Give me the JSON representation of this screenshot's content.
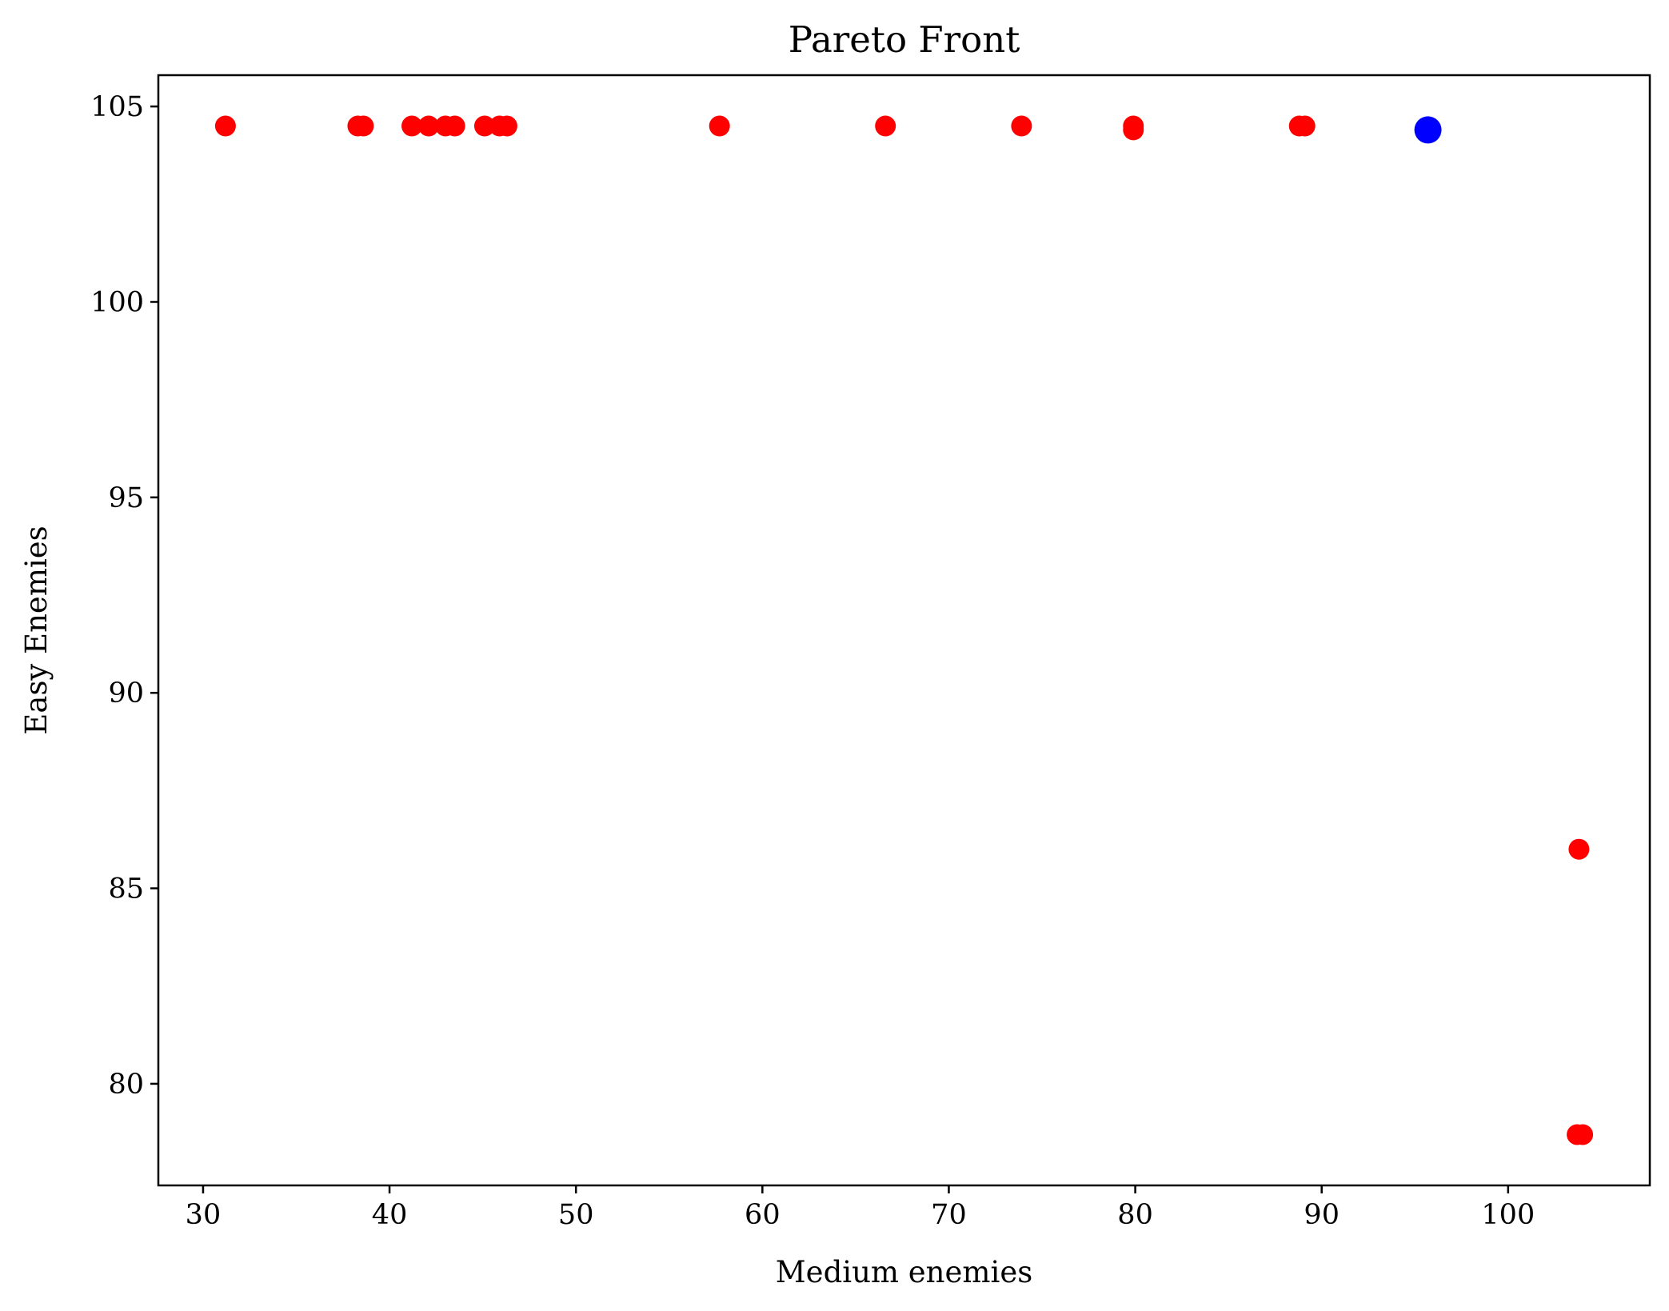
{
  "chart_data": {
    "type": "scatter",
    "title": "Pareto Front",
    "xlabel": "Medium enemies",
    "ylabel": "Easy Enemies",
    "xlim": [
      27.6,
      107.6
    ],
    "ylim": [
      77.4,
      105.8
    ],
    "xticks": [
      30,
      40,
      50,
      60,
      70,
      80,
      90,
      100
    ],
    "yticks": [
      80,
      85,
      90,
      95,
      100,
      105
    ],
    "grid": false,
    "series": [
      {
        "color": "#ff0000",
        "points": [
          {
            "x": 31.2,
            "y": 104.5
          },
          {
            "x": 38.3,
            "y": 104.5
          },
          {
            "x": 38.6,
            "y": 104.5
          },
          {
            "x": 41.2,
            "y": 104.5
          },
          {
            "x": 42.1,
            "y": 104.5
          },
          {
            "x": 43.0,
            "y": 104.5
          },
          {
            "x": 43.5,
            "y": 104.5
          },
          {
            "x": 45.1,
            "y": 104.5
          },
          {
            "x": 45.9,
            "y": 104.5
          },
          {
            "x": 46.3,
            "y": 104.5
          },
          {
            "x": 57.7,
            "y": 104.5
          },
          {
            "x": 66.6,
            "y": 104.5
          },
          {
            "x": 73.9,
            "y": 104.5
          },
          {
            "x": 79.9,
            "y": 104.4
          },
          {
            "x": 79.9,
            "y": 104.5
          },
          {
            "x": 88.8,
            "y": 104.5
          },
          {
            "x": 89.1,
            "y": 104.5
          },
          {
            "x": 103.8,
            "y": 86.0
          },
          {
            "x": 103.7,
            "y": 78.7
          },
          {
            "x": 104.0,
            "y": 78.7
          }
        ]
      },
      {
        "color": "#0000ff",
        "points": [
          {
            "x": 95.7,
            "y": 104.4
          }
        ]
      }
    ]
  }
}
